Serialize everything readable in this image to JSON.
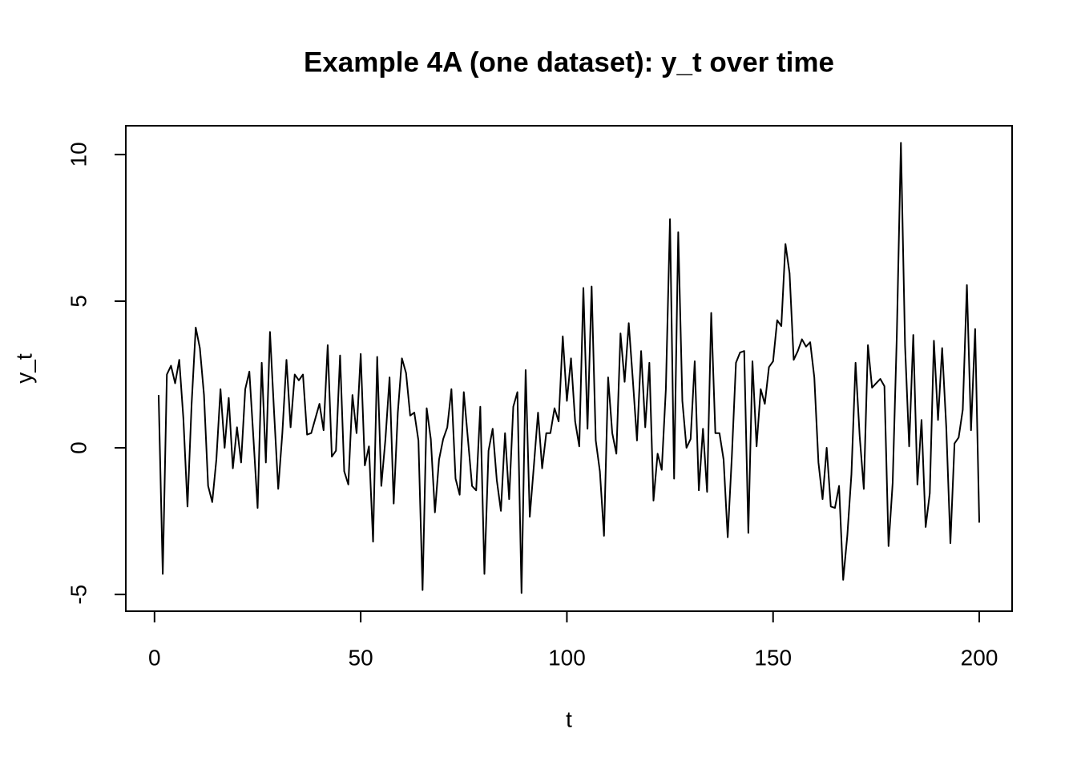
{
  "chart_data": {
    "type": "line",
    "title": "Example 4A (one dataset): y_t over time",
    "x_label": "t",
    "y_label": "y_t",
    "x": [
      1,
      2,
      3,
      4,
      5,
      6,
      7,
      8,
      9,
      10,
      11,
      12,
      13,
      14,
      15,
      16,
      17,
      18,
      19,
      20,
      21,
      22,
      23,
      24,
      25,
      26,
      27,
      28,
      29,
      30,
      31,
      32,
      33,
      34,
      35,
      36,
      37,
      38,
      39,
      40,
      41,
      42,
      43,
      44,
      45,
      46,
      47,
      48,
      49,
      50,
      51,
      52,
      53,
      54,
      55,
      56,
      57,
      58,
      59,
      60,
      61,
      62,
      63,
      64,
      65,
      66,
      67,
      68,
      69,
      70,
      71,
      72,
      73,
      74,
      75,
      76,
      77,
      78,
      79,
      80,
      81,
      82,
      83,
      84,
      85,
      86,
      87,
      88,
      89,
      90,
      91,
      92,
      93,
      94,
      95,
      96,
      97,
      98,
      99,
      100,
      101,
      102,
      103,
      104,
      105,
      106,
      107,
      108,
      109,
      110,
      111,
      112,
      113,
      114,
      115,
      116,
      117,
      118,
      119,
      120,
      121,
      122,
      123,
      124,
      125,
      126,
      127,
      128,
      129,
      130,
      131,
      132,
      133,
      134,
      135,
      136,
      137,
      138,
      139,
      140,
      141,
      142,
      143,
      144,
      145,
      146,
      147,
      148,
      149,
      150,
      151,
      152,
      153,
      154,
      155,
      156,
      157,
      158,
      159,
      160,
      161,
      162,
      163,
      164,
      165,
      166,
      167,
      168,
      169,
      170,
      171,
      172,
      173,
      174,
      175,
      176,
      177,
      178,
      179,
      180,
      181,
      182,
      183,
      184,
      185,
      186,
      187,
      188,
      189,
      190,
      191,
      192,
      193,
      194,
      195,
      196,
      197,
      198,
      199,
      200
    ],
    "values": [
      1.8,
      -4.3,
      2.5,
      2.8,
      2.2,
      3.0,
      1.0,
      -2.0,
      1.5,
      4.1,
      3.4,
      1.8,
      -1.3,
      -1.85,
      -0.4,
      2.0,
      0.0,
      1.7,
      -0.7,
      0.7,
      -0.5,
      2.0,
      2.6,
      0.3,
      -2.05,
      2.9,
      -0.5,
      3.95,
      1.2,
      -1.4,
      0.5,
      3.0,
      0.7,
      2.5,
      2.3,
      2.5,
      0.45,
      0.5,
      1.0,
      1.5,
      0.6,
      3.5,
      -0.3,
      -0.1,
      3.15,
      -0.8,
      -1.25,
      1.8,
      0.5,
      3.2,
      -0.6,
      0.05,
      -3.2,
      3.1,
      -1.3,
      0.3,
      2.4,
      -1.9,
      1.2,
      3.05,
      2.55,
      1.1,
      1.2,
      0.25,
      -4.85,
      1.35,
      0.3,
      -2.2,
      -0.4,
      0.3,
      0.7,
      2.0,
      -1.05,
      -1.6,
      1.9,
      0.3,
      -1.3,
      -1.45,
      1.4,
      -4.3,
      -0.1,
      0.65,
      -1.1,
      -2.15,
      0.5,
      -1.75,
      1.4,
      1.9,
      -4.95,
      2.65,
      -2.35,
      -0.6,
      1.2,
      -0.7,
      0.5,
      0.5,
      1.35,
      0.9,
      3.8,
      1.6,
      3.05,
      0.9,
      0.05,
      5.45,
      0.65,
      5.5,
      0.25,
      -0.8,
      -3.0,
      2.4,
      0.5,
      -0.2,
      3.9,
      2.25,
      4.25,
      2.3,
      0.25,
      3.3,
      0.7,
      2.9,
      -1.8,
      -0.2,
      -0.75,
      2.0,
      7.8,
      -1.05,
      7.35,
      1.6,
      0.0,
      0.3,
      2.95,
      -1.45,
      0.65,
      -1.5,
      4.6,
      0.5,
      0.5,
      -0.4,
      -3.05,
      -0.3,
      2.9,
      3.25,
      3.3,
      -2.9,
      2.95,
      0.05,
      2.0,
      1.5,
      2.75,
      2.95,
      4.35,
      4.15,
      6.95,
      5.95,
      3.0,
      3.3,
      3.7,
      3.45,
      3.6,
      2.4,
      -0.5,
      -1.75,
      0.0,
      -2.0,
      -2.05,
      -1.3,
      -4.5,
      -3.0,
      -0.9,
      2.9,
      0.4,
      -1.4,
      3.5,
      2.05,
      2.2,
      2.35,
      2.1,
      -3.35,
      -1.2,
      3.8,
      10.4,
      3.5,
      0.05,
      3.85,
      -1.25,
      0.95,
      -2.7,
      -1.55,
      3.65,
      0.95,
      3.4,
      0.7,
      -3.25,
      0.15,
      0.35,
      1.3,
      5.55,
      0.6,
      4.05,
      -2.55
    ],
    "color": "#000000",
    "xlim": [
      -6.96,
      207.96
    ],
    "xticks": [
      0,
      50,
      100,
      150,
      200
    ],
    "ylim": [
      -5.57,
      10.98
    ],
    "yticks": [
      -5,
      0,
      5,
      10
    ]
  }
}
